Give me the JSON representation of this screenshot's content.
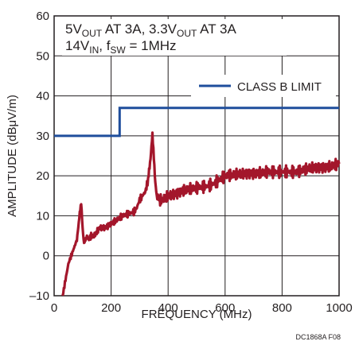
{
  "chart_data": {
    "type": "line",
    "xlabel": "FREQUENCY (MHz)",
    "ylabel": "AMPLITUDE (dBμV/m)",
    "xlim": [
      0,
      1000
    ],
    "ylim": [
      -10,
      60
    ],
    "xticks": [
      "0",
      "200",
      "400",
      "600",
      "800",
      "1000"
    ],
    "yticks": [
      "–10",
      "0",
      "10",
      "20",
      "30",
      "40",
      "50",
      "60"
    ],
    "grid": true,
    "annotation": {
      "line1": {
        "a": "5V",
        "a_sub": "OUT",
        "b": " AT 3A, 3.3V",
        "b_sub": "OUT",
        "c": " AT 3A"
      },
      "line2": {
        "a": "14V",
        "a_sub": "IN",
        "b": ", f",
        "b_sub": "SW",
        "c": " = 1MHz"
      }
    },
    "legend_position": "top-right",
    "series": [
      {
        "name": "CLASS B LIMIT",
        "color": "#1f4e9c",
        "x": [
          0,
          230,
          230,
          1000
        ],
        "y": [
          30,
          30,
          37,
          37
        ]
      },
      {
        "color": "#a3162b",
        "x": [
          30,
          40,
          50,
          60,
          70,
          80,
          85,
          90,
          95,
          100,
          105,
          110,
          115,
          120,
          130,
          140,
          150,
          160,
          170,
          180,
          200,
          220,
          240,
          260,
          280,
          290,
          300,
          310,
          320,
          330,
          335,
          340,
          345,
          350,
          355,
          360,
          370,
          380,
          400,
          430,
          460,
          500,
          540,
          560,
          580,
          600,
          650,
          700,
          750,
          800,
          850,
          900,
          950,
          1000
        ],
        "y": [
          -10,
          -6,
          -2,
          0,
          2,
          4,
          7,
          11,
          13,
          7,
          3,
          4,
          5,
          4,
          5,
          5,
          6,
          7,
          7,
          7,
          8,
          9,
          10,
          10.5,
          11,
          12,
          14,
          15,
          16,
          19,
          22,
          26,
          30,
          25,
          18,
          15,
          14,
          14,
          15,
          15.5,
          16.5,
          17,
          17.5,
          18,
          19,
          20,
          20.5,
          20.5,
          21,
          21,
          21,
          22,
          22,
          23
        ]
      }
    ]
  },
  "footer": {
    "figure_id": "DC1868A F08"
  }
}
